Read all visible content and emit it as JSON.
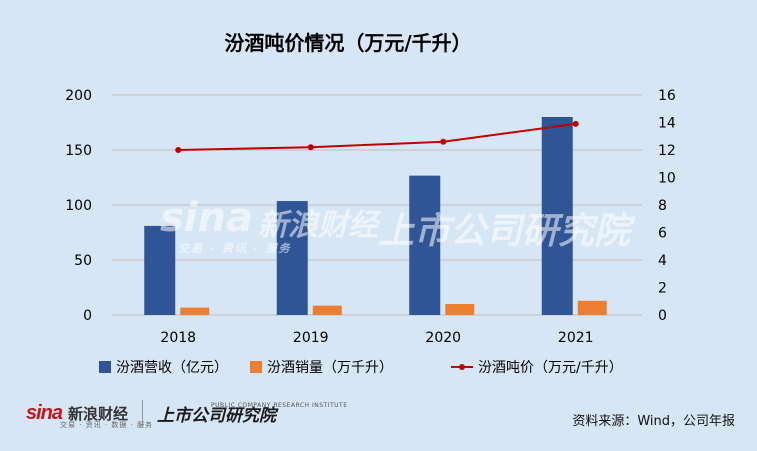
{
  "chart_data": {
    "type": "bar",
    "title": "汾酒吨价情况（万元/千升）",
    "categories": [
      "2018",
      "2019",
      "2020",
      "2021"
    ],
    "y_left": {
      "min": 0,
      "max": 200,
      "ticks": [
        0,
        50,
        100,
        150,
        200
      ]
    },
    "y_right": {
      "min": 0,
      "max": 16,
      "ticks": [
        0,
        2,
        4,
        6,
        8,
        10,
        12,
        14,
        16
      ]
    },
    "series": [
      {
        "name": "汾酒营收（亿元）",
        "type": "bar",
        "axis": "left",
        "color": "#2f5597",
        "values": [
          81,
          103.6,
          126.7,
          180.0
        ]
      },
      {
        "name": "汾酒销量（万千升）",
        "type": "bar",
        "axis": "left",
        "color": "#ed7d31",
        "values": [
          6.7,
          8.5,
          10.0,
          12.9
        ]
      },
      {
        "name": "汾酒吨价（万元/千升）",
        "type": "line",
        "axis": "right",
        "color": "#c00000",
        "values": [
          12.0,
          12.2,
          12.6,
          13.9
        ]
      }
    ],
    "grid": true,
    "legend": "bottom"
  },
  "footer": {
    "sina_logo": "sina",
    "sina_cn": "新浪财经",
    "sina_sub": "交易 · 资讯 · 数据 · 服务",
    "institute": "上市公司研究院",
    "institute_sub": "PUBLIC COMPANY RESEARCH INSTITUTE",
    "source": "资料来源：Wind，公司年报"
  },
  "watermark": {
    "sina_cn": "新浪财经",
    "sina_sub": "交易 · 资讯 · 服务",
    "institute": "上市公司研究院"
  },
  "colors": {
    "background": "#d7e6f5",
    "grid": "#bfbfbf"
  }
}
